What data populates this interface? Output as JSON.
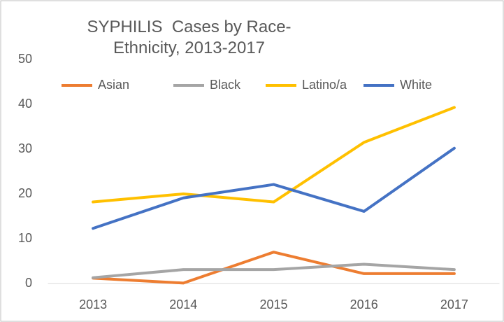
{
  "chart_data": {
    "type": "line",
    "title": "SYPHILIS  Cases by Race-Ethnicity, 2013-2017",
    "categories": [
      "2013",
      "2014",
      "2015",
      "2016",
      "2017"
    ],
    "series": [
      {
        "name": "Asian",
        "color": "#ed7d31",
        "values": [
          1.2,
          0.1,
          7,
          2.2,
          2.2
        ]
      },
      {
        "name": "Black",
        "color": "#a5a5a5",
        "values": [
          1.3,
          3.1,
          3.1,
          4.3,
          3.1
        ]
      },
      {
        "name": "Latino/a",
        "color": "#ffc000",
        "values": [
          18.2,
          20,
          18.2,
          31.5,
          39.3
        ]
      },
      {
        "name": "White",
        "color": "#4472c4",
        "values": [
          12.3,
          19.1,
          22.1,
          16.1,
          30.2
        ]
      }
    ],
    "ylim": [
      0,
      50
    ],
    "yticks": [
      0,
      10,
      20,
      30,
      40,
      50
    ],
    "grid": false,
    "legend": "top"
  }
}
